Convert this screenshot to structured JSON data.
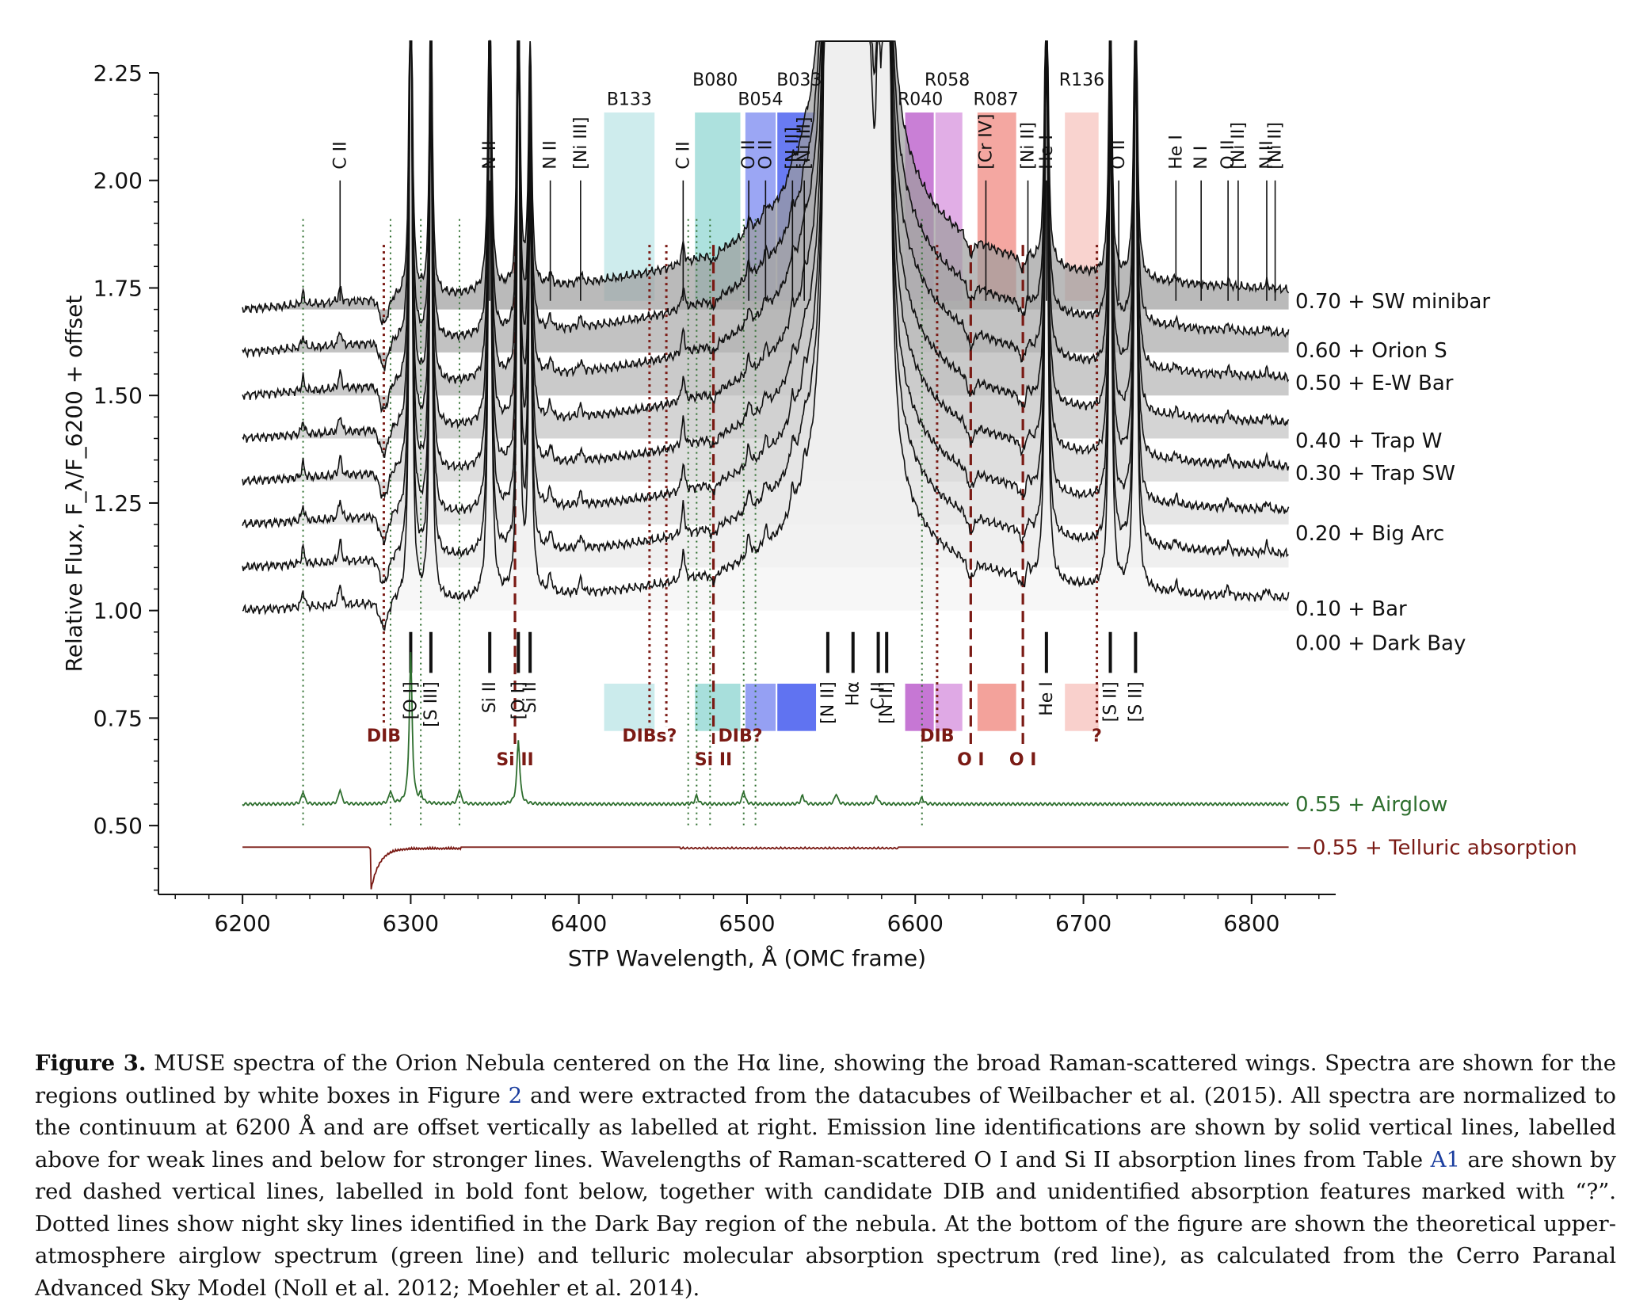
{
  "chart_data": {
    "type": "line",
    "xlabel": "STP Wavelength, Å (OMC frame)",
    "ylabel": "Relative Flux, F_λ/F_6200 + offset",
    "xlim": [
      6150,
      6850
    ],
    "ylim": [
      0.34,
      2.25
    ],
    "xticks": [
      6200,
      6300,
      6400,
      6500,
      6600,
      6700,
      6800
    ],
    "yticks": [
      0.5,
      0.75,
      1.0,
      1.25,
      1.5,
      1.75,
      2.0,
      2.25
    ],
    "ytick_labels": [
      "0.50",
      "0.75",
      "1.00",
      "1.25",
      "1.50",
      "1.75",
      "2.00",
      "2.25"
    ],
    "series": [
      {
        "name": "0.70 + SW minibar",
        "offset": 0.7,
        "wing": 1.0,
        "label_y": 1.72
      },
      {
        "name": "0.60 + Orion S",
        "offset": 0.6,
        "wing": 0.95,
        "label_y": 1.605
      },
      {
        "name": "0.50 + E-W Bar",
        "offset": 0.5,
        "wing": 0.9,
        "label_y": 1.53
      },
      {
        "name": "0.40 + Trap W",
        "offset": 0.4,
        "wing": 0.8,
        "label_y": 1.395
      },
      {
        "name": "0.30 + Trap SW",
        "offset": 0.3,
        "wing": 0.75,
        "label_y": 1.32
      },
      {
        "name": "0.20 + Big Arc",
        "offset": 0.2,
        "wing": 0.7,
        "label_y": 1.18
      },
      {
        "name": "0.10 + Bar",
        "offset": 0.1,
        "wing": 0.68,
        "label_y": 1.005
      },
      {
        "name": "0.00 + Dark Bay",
        "offset": 0.0,
        "wing": 0.62,
        "label_y": 0.925
      }
    ],
    "airglow": {
      "name": "0.55 + Airglow",
      "offset": 0.55,
      "color": "#2e6e2e"
    },
    "telluric": {
      "name": "−0.55 + Telluric absorption",
      "offset": 0.45,
      "color": "#7a1a14"
    },
    "bands": [
      {
        "label": "B133",
        "x0": 6415,
        "x1": 6445,
        "color": "#c5e9ea"
      },
      {
        "label": "B080",
        "x0": 6469,
        "x1": 6496,
        "color": "#9fdcd8"
      },
      {
        "label": "B054",
        "x0": 6499,
        "x1": 6517,
        "color": "#8a96f2"
      },
      {
        "label": "B033",
        "x0": 6518,
        "x1": 6541,
        "color": "#4f64f0"
      },
      {
        "label": "R040",
        "x0": 6594,
        "x1": 6611,
        "color": "#c068cf"
      },
      {
        "label": "R058",
        "x0": 6612,
        "x1": 6628,
        "color": "#dca0e2"
      },
      {
        "label": "R087",
        "x0": 6637,
        "x1": 6660,
        "color": "#f29890"
      },
      {
        "label": "R136",
        "x0": 6689,
        "x1": 6709,
        "color": "#f8cbc7"
      }
    ],
    "band_labels_top": [
      {
        "text": "B133",
        "x": 6430,
        "y": 2.19
      },
      {
        "text": "B080",
        "x": 6481,
        "y": 2.235
      },
      {
        "text": "B054",
        "x": 6508,
        "y": 2.19
      },
      {
        "text": "B033",
        "x": 6531,
        "y": 2.235
      },
      {
        "text": "R040",
        "x": 6603,
        "y": 2.19
      },
      {
        "text": "R058",
        "x": 6619,
        "y": 2.235
      },
      {
        "text": "R087",
        "x": 6648,
        "y": 2.19
      },
      {
        "text": "R136",
        "x": 6699,
        "y": 2.235
      }
    ],
    "weak_lines_above": [
      {
        "label": "C II",
        "x": 6258
      },
      {
        "label": "N II",
        "x": 6347
      },
      {
        "label": "N II",
        "x": 6383
      },
      {
        "label": "[Ni III]",
        "x": 6401
      },
      {
        "label": "C II",
        "x": 6462
      },
      {
        "label": "O II",
        "x": 6501
      },
      {
        "label": "O II",
        "x": 6511
      },
      {
        "label": "[N II]",
        "x": 6527
      },
      {
        "label": "[Ni III]",
        "x": 6534
      },
      {
        "label": "[Cr IV]",
        "x": 6642
      },
      {
        "label": "[Ni II]",
        "x": 6667
      },
      {
        "label": "He I",
        "x": 6678
      },
      {
        "label": "O II",
        "x": 6721
      },
      {
        "label": "He I",
        "x": 6755
      },
      {
        "label": "N I",
        "x": 6770
      },
      {
        "label": "O II",
        "x": 6786
      },
      {
        "label": "[Ni II]",
        "x": 6792
      },
      {
        "label": "N II",
        "x": 6809
      },
      {
        "label": "[Ni II]",
        "x": 6814
      }
    ],
    "strong_lines_below": [
      {
        "label": "[O I]",
        "x": 6300
      },
      {
        "label": "[S III]",
        "x": 6312
      },
      {
        "label": "Si II",
        "x": 6347
      },
      {
        "label": "[O I]",
        "x": 6364
      },
      {
        "label": "Si II",
        "x": 6371
      },
      {
        "label": "[N II]",
        "x": 6548
      },
      {
        "label": "Hα",
        "x": 6563
      },
      {
        "label": "C II",
        "x": 6578
      },
      {
        "label": "[N II]",
        "x": 6583
      },
      {
        "label": "He I",
        "x": 6678
      },
      {
        "label": "[S II]",
        "x": 6716
      },
      {
        "label": "[S II]",
        "x": 6731
      }
    ],
    "absorption_labels": [
      {
        "text": "DIB",
        "x": 6284,
        "y": 0.71
      },
      {
        "text": "Si II",
        "x": 6362,
        "y": 0.655
      },
      {
        "text": "DIBs?",
        "x": 6442,
        "y": 0.71
      },
      {
        "text": "Si II",
        "x": 6480,
        "y": 0.655
      },
      {
        "text": "DIB?",
        "x": 6496,
        "y": 0.71
      },
      {
        "text": "DIB",
        "x": 6613,
        "y": 0.71
      },
      {
        "text": "O I",
        "x": 6633,
        "y": 0.655
      },
      {
        "text": "O I",
        "x": 6664,
        "y": 0.655
      },
      {
        "text": "?",
        "x": 6708,
        "y": 0.71
      }
    ],
    "raman_absorption_x": [
      6362,
      6480,
      6633,
      6664
    ],
    "dib_dotted_x": [
      6284,
      6442,
      6452,
      6613,
      6708
    ],
    "sky_dotted_x": [
      6236,
      6288,
      6306,
      6329,
      6465,
      6470,
      6478,
      6498,
      6505,
      6604
    ],
    "grid": false,
    "legend": "right"
  },
  "caption": {
    "label": "Figure 3.",
    "text_1": "MUSE spectra of the Orion Nebula centered on the Hα line, showing the broad Raman-scattered wings. Spectra are shown for the regions outlined by white boxes in Figure",
    "ref_fig": "2",
    "text_2": "and were extracted from the datacubes of Weilbacher et al. (2015). All spectra are normalized to the continuum at 6200 Å and are offset vertically as labelled at right. Emission line identifications are shown by solid vertical lines, labelled above for weak lines and below for stronger lines. Wavelengths of Raman-scattered O I and Si II absorption lines from Table",
    "ref_table": "A1",
    "text_3": "are shown by red dashed vertical lines, labelled in bold font below, together with candidate DIB and unidentified absorption features marked with “?”. Dotted lines show night sky lines identified in the Dark Bay region of the nebula. At the bottom of the figure are shown the theoretical upper-atmosphere airglow spectrum (green line) and telluric molecular absorption spectrum (red line), as calculated from the Cerro Paranal Advanced Sky Model (Noll et al. 2012; Moehler et al. 2014)."
  }
}
